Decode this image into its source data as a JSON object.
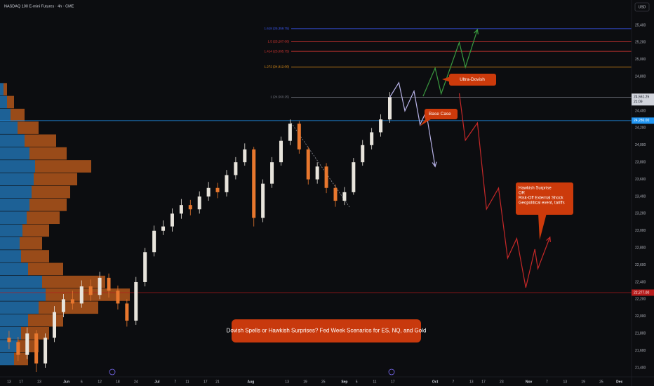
{
  "chart_data": {
    "type": "candlestick",
    "title": "NASDAQ 100 E-mini Futures · 4h · CME",
    "currency": "USD",
    "up_color": "#e8e4dc",
    "down_color": "#e8772e",
    "grid": false,
    "xlim": [
      -3,
      206
    ],
    "ylim": [
      21293,
      25695
    ],
    "xticks": [
      {
        "value": 0,
        "label": "13"
      },
      {
        "value": 4,
        "label": "17"
      },
      {
        "value": 10,
        "label": "23"
      },
      {
        "value": 19,
        "label": "Jun"
      },
      {
        "value": 24,
        "label": "6"
      },
      {
        "value": 30,
        "label": "12"
      },
      {
        "value": 36,
        "label": "18"
      },
      {
        "value": 42,
        "label": "24"
      },
      {
        "value": 49,
        "label": "Jul"
      },
      {
        "value": 55,
        "label": "7"
      },
      {
        "value": 59,
        "label": "11"
      },
      {
        "value": 65,
        "label": "17"
      },
      {
        "value": 69,
        "label": "21"
      },
      {
        "value": 80,
        "label": "Aug"
      },
      {
        "value": 92,
        "label": "13"
      },
      {
        "value": 98,
        "label": "19"
      },
      {
        "value": 104,
        "label": "25"
      },
      {
        "value": 111,
        "label": "Sep"
      },
      {
        "value": 115,
        "label": "5"
      },
      {
        "value": 121,
        "label": "11"
      },
      {
        "value": 127,
        "label": "17"
      },
      {
        "value": 141,
        "label": "Oct"
      },
      {
        "value": 147,
        "label": "7"
      },
      {
        "value": 153,
        "label": "13"
      },
      {
        "value": 157,
        "label": "17"
      },
      {
        "value": 163,
        "label": "23"
      },
      {
        "value": 172,
        "label": "Nov"
      },
      {
        "value": 178,
        "label": "7"
      },
      {
        "value": 184,
        "label": "13"
      },
      {
        "value": 190,
        "label": "19"
      },
      {
        "value": 196,
        "label": "25"
      },
      {
        "value": 202,
        "label": "Dec"
      }
    ],
    "yticks": [
      {
        "value": 21400,
        "label": "21,400"
      },
      {
        "value": 21600,
        "label": "21,600"
      },
      {
        "value": 21800,
        "label": "21,800"
      },
      {
        "value": 22000,
        "label": "22,000"
      },
      {
        "value": 22200,
        "label": "22,200"
      },
      {
        "value": 22400,
        "label": "22,400"
      },
      {
        "value": 22600,
        "label": "22,600"
      },
      {
        "value": 22800,
        "label": "22,800"
      },
      {
        "value": 23000,
        "label": "23,000"
      },
      {
        "value": 23200,
        "label": "23,200"
      },
      {
        "value": 23400,
        "label": "23,400"
      },
      {
        "value": 23600,
        "label": "23,600"
      },
      {
        "value": 23800,
        "label": "23,800"
      },
      {
        "value": 24000,
        "label": "24,000"
      },
      {
        "value": 24200,
        "label": "24,200"
      },
      {
        "value": 24400,
        "label": "24,400"
      },
      {
        "value": 24800,
        "label": "24,800"
      },
      {
        "value": 25000,
        "label": "25,000"
      },
      {
        "value": 25200,
        "label": "25,200"
      },
      {
        "value": 25400,
        "label": "25,400"
      }
    ],
    "x": [
      0,
      3,
      6,
      9,
      12,
      15,
      18,
      21,
      24,
      27,
      30,
      33,
      36,
      39,
      42,
      45,
      48,
      51,
      54,
      57,
      60,
      63,
      66,
      69,
      72,
      75,
      78,
      81,
      84,
      87,
      90,
      93,
      96,
      99,
      102,
      105,
      108,
      111,
      114,
      117,
      120,
      123,
      126
    ],
    "open": [
      21750,
      21700,
      21550,
      21800,
      21450,
      21750,
      22050,
      22200,
      22150,
      22350,
      22250,
      22450,
      22300,
      22150,
      21950,
      22400,
      22750,
      23000,
      23050,
      23200,
      23300,
      23250,
      23400,
      23500,
      23450,
      23650,
      23800,
      23950,
      23150,
      23550,
      23800,
      24050,
      24250,
      23950,
      23600,
      23750,
      23500,
      23350,
      23450,
      23800,
      24000,
      24150,
      24300
    ],
    "high": [
      21830,
      21760,
      21870,
      21840,
      21800,
      22120,
      22260,
      22300,
      22420,
      22430,
      22520,
      22500,
      22360,
      22200,
      22460,
      22800,
      23060,
      23120,
      23260,
      23370,
      23360,
      23460,
      23570,
      23560,
      23710,
      23860,
      24020,
      23980,
      23600,
      23860,
      24100,
      24300,
      24280,
      23980,
      23800,
      23790,
      23540,
      23510,
      23850,
      24060,
      24200,
      24360,
      24620
    ],
    "low": [
      21620,
      21480,
      21500,
      21350,
      21400,
      21700,
      21990,
      22080,
      22100,
      22180,
      22200,
      22220,
      22080,
      21880,
      21900,
      22350,
      22700,
      22950,
      22990,
      23140,
      23180,
      23200,
      23350,
      23380,
      23400,
      23600,
      23760,
      23050,
      23100,
      23500,
      23760,
      24000,
      23900,
      23540,
      23550,
      23440,
      23280,
      23300,
      23420,
      23760,
      23950,
      24100,
      24260
    ],
    "close": [
      21700,
      21550,
      21800,
      21450,
      21750,
      22050,
      22200,
      22150,
      22350,
      22250,
      22450,
      22300,
      22150,
      21950,
      22400,
      22750,
      23000,
      23050,
      23200,
      23300,
      23250,
      23400,
      23500,
      23450,
      23650,
      23800,
      23950,
      23150,
      23550,
      23800,
      24050,
      24250,
      23950,
      23600,
      23750,
      23500,
      23350,
      23450,
      23800,
      24000,
      24150,
      24300,
      24561
    ],
    "volume_profile": {
      "prices": [
        21500,
        21650,
        21800,
        21950,
        22100,
        22250,
        22400,
        22550,
        22700,
        22850,
        23000,
        23150,
        23300,
        23450,
        23600,
        23750,
        23900,
        24050,
        24200,
        24350,
        24500,
        24650
      ],
      "blue": [
        20,
        25,
        30,
        40,
        55,
        65,
        60,
        40,
        30,
        28,
        32,
        38,
        42,
        45,
        48,
        50,
        42,
        35,
        25,
        15,
        10,
        5
      ],
      "blue_color": "#1f6aa5",
      "orange": [
        20,
        30,
        40,
        50,
        85,
        120,
        90,
        50,
        40,
        32,
        38,
        47,
        53,
        55,
        62,
        80,
        53,
        45,
        30,
        20,
        10,
        5
      ],
      "orange_color": "#a9521b"
    },
    "levels": [
      {
        "value": 25359.75,
        "label": "1.618 (25,359.75)",
        "color": "#3d5afe"
      },
      {
        "value": 25207,
        "label": "1.5 (25,207.00)",
        "color": "#e53935"
      },
      {
        "value": 25095.75,
        "label": "1.414 (25,095.75)",
        "color": "#e53935"
      },
      {
        "value": 24912,
        "label": "1.272 (24,912.00)",
        "color": "#f59c1a"
      },
      {
        "value": 24560.25,
        "label": "1 (24,560.25)",
        "color": "#787b86"
      }
    ],
    "hlines": [
      {
        "value": 24286,
        "label": "24,286.00",
        "color": "#2196f3"
      },
      {
        "value": 22277,
        "label": "22,277.00",
        "color": "#b71c1c"
      }
    ],
    "last": {
      "value": 24561.25,
      "label": "24,561.25",
      "countdown": "21:09",
      "color": "#d1d4dc"
    },
    "scenarios": [
      {
        "color": "#3a9a3f",
        "x": [
          137,
          141,
          143,
          149,
          151,
          155
        ],
        "values": [
          24570,
          24900,
          24600,
          25200,
          24910,
          25350
        ]
      },
      {
        "color": "#b8b3e8",
        "x": [
          126,
          129,
          131,
          134,
          136,
          138,
          141
        ],
        "values": [
          24560,
          24730,
          24400,
          24630,
          24240,
          24390,
          23750
        ]
      },
      {
        "color": "#c62828",
        "x": [
          149,
          151,
          155,
          158,
          162,
          165,
          168,
          171,
          174,
          175,
          179
        ],
        "values": [
          24605,
          24056,
          24260,
          23252,
          23498,
          22680,
          22910,
          22335,
          22785,
          22556,
          22925
        ]
      }
    ],
    "callouts": {
      "ultra_dovish": "Ultra-Dovish",
      "base_case": "Base Case",
      "hawkish": [
        "Hawkish Surprise",
        "OR",
        "Risk-Off External Shock",
        "Geopolitical event, tariffs"
      ]
    },
    "banner": "Dovish Spells or Hawkish Surprises? Fed Week Scenarios for ES, NQ, and Gold"
  }
}
